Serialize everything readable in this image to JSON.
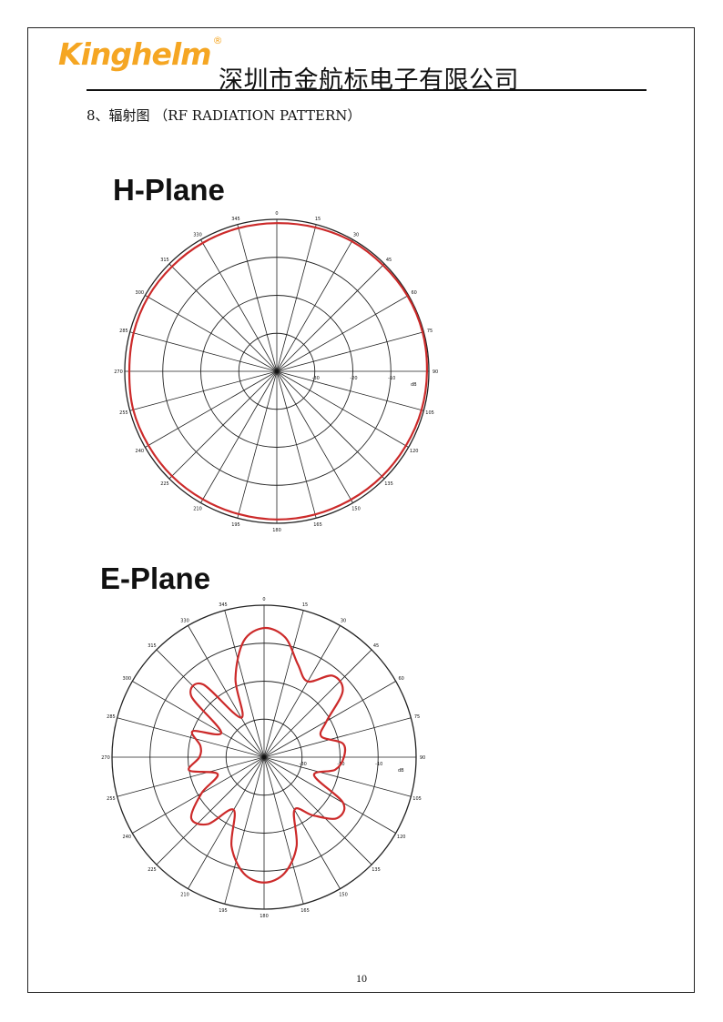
{
  "header": {
    "logo_text": "Kinghelm",
    "logo_mark": "®",
    "company": "深圳市金航标电子有限公司",
    "brand_color": "#f5a623"
  },
  "section_title": "8、辐射图 （RF RADIATION PATTERN）",
  "page_number": "10",
  "chart_data": [
    {
      "type": "polar",
      "title": "H-Plane",
      "angle_labels": [
        "0",
        "15",
        "30",
        "45",
        "60",
        "75",
        "90",
        "105",
        "120",
        "135",
        "150",
        "165",
        "180",
        "195",
        "210",
        "225",
        "240",
        "255",
        "270",
        "285",
        "300",
        "315",
        "330",
        "345"
      ],
      "radial_labels": [
        "-30",
        "-20",
        "-10"
      ],
      "radial_unit": "dB",
      "radial_range": [
        -40,
        0
      ],
      "grid": true,
      "line_color": "#cc2a2a",
      "series": [
        {
          "angles": [
            0,
            15,
            30,
            45,
            60,
            75,
            90,
            105,
            120,
            135,
            150,
            165,
            180,
            195,
            210,
            225,
            240,
            255,
            270,
            285,
            300,
            315,
            330,
            345,
            360
          ],
          "values": [
            -1,
            -0.8,
            -0.5,
            -0.5,
            -0.3,
            -0.3,
            -0.5,
            -0.6,
            -0.8,
            -0.9,
            -1,
            -1,
            -1,
            -1.1,
            -1.1,
            -1,
            -1,
            -0.9,
            -1.2,
            -1,
            -0.9,
            -1,
            -1,
            -1,
            -1
          ]
        }
      ]
    },
    {
      "type": "polar",
      "title": "E-Plane",
      "angle_labels": [
        "0",
        "15",
        "30",
        "45",
        "60",
        "75",
        "90",
        "105",
        "120",
        "135",
        "150",
        "165",
        "180",
        "195",
        "210",
        "225",
        "240",
        "255",
        "270",
        "285",
        "300",
        "315",
        "330",
        "345"
      ],
      "radial_labels": [
        "-30",
        "-20",
        "-10"
      ],
      "radial_unit": "dB",
      "radial_range": [
        -40,
        0
      ],
      "grid": true,
      "line_color": "#cc2a2a",
      "series": [
        {
          "angles": [
            0,
            10,
            20,
            30,
            40,
            50,
            60,
            70,
            80,
            90,
            100,
            110,
            120,
            130,
            140,
            150,
            160,
            170,
            180,
            190,
            200,
            210,
            220,
            230,
            240,
            250,
            260,
            270,
            280,
            290,
            300,
            310,
            320,
            330,
            340,
            350,
            360
          ],
          "values": [
            -6,
            -8,
            -14,
            -17,
            -12,
            -13,
            -21,
            -24,
            -19,
            -19,
            -21,
            -26,
            -16,
            -15,
            -20,
            -24,
            -15,
            -9,
            -7,
            -9,
            -15,
            -24,
            -17,
            -15,
            -21,
            -27,
            -20,
            -23,
            -23,
            -20,
            -27,
            -15,
            -15,
            -28,
            -18,
            -9,
            -6
          ]
        }
      ]
    }
  ]
}
